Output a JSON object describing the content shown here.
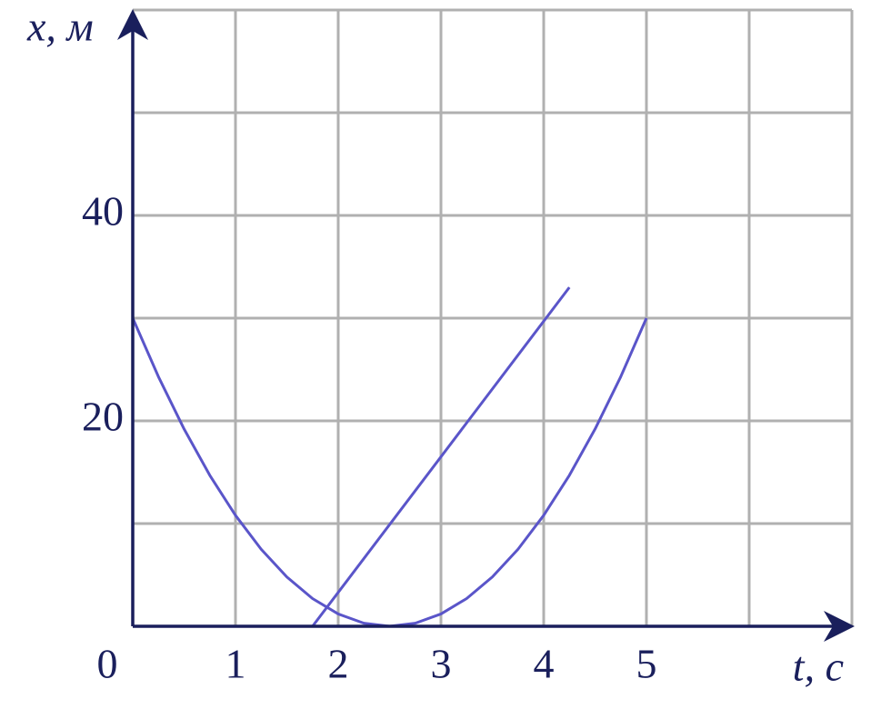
{
  "chart_data": {
    "type": "line",
    "x_label": "t, c",
    "y_label": "x, м",
    "xlim": [
      0,
      7
    ],
    "ylim": [
      0,
      60
    ],
    "xticks": [
      0,
      1,
      2,
      3,
      4,
      5
    ],
    "yticks": [
      20,
      40
    ],
    "xgrid": [
      1,
      2,
      3,
      4,
      5,
      6,
      7
    ],
    "ygrid": [
      10,
      20,
      30,
      40,
      50,
      60
    ],
    "grid": true,
    "series": [
      {
        "color": "#5a55c9",
        "x": [
          0,
          0.25,
          0.5,
          0.75,
          1,
          1.25,
          1.5,
          1.75,
          2,
          2.25,
          2.5,
          2.75,
          3,
          3.25,
          3.5,
          3.75,
          4,
          4.25,
          4.5,
          4.75,
          5
        ],
        "values": [
          30,
          24.3,
          19.2,
          14.7,
          10.8,
          7.5,
          4.8,
          2.7,
          1.2,
          0.3,
          0,
          0.3,
          1.2,
          2.7,
          4.8,
          7.5,
          10.8,
          14.7,
          19.2,
          24.3,
          30
        ]
      },
      {
        "color": "#5a55c9",
        "x": [
          1.75,
          4.25
        ],
        "values": [
          0,
          33
        ]
      }
    ]
  }
}
